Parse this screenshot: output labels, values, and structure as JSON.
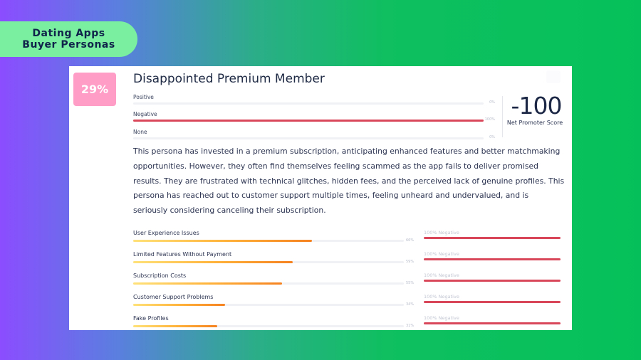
{
  "pill": {
    "line1": "Dating Apps",
    "line2": "Buyer Personas"
  },
  "persona": {
    "percent": "29%",
    "title": "Disappointed Premium Member",
    "sentiment": [
      {
        "label": "Positive",
        "value": "0%",
        "fraction": 0
      },
      {
        "label": "Negative",
        "value": "100%",
        "fraction": 1.0
      },
      {
        "label": "None",
        "value": "0%",
        "fraction": 0
      }
    ],
    "nps": {
      "score": "-100",
      "label": "Net Promoter Score"
    },
    "description": "This persona has invested in a premium subscription, anticipating enhanced features and better matchmaking opportunities. However, they often find themselves feeling scammed as the app fails to deliver promised results. They are frustrated with technical glitches, hidden fees, and the perceived lack of genuine profiles. This persona has reached out to customer support multiple times, feeling unheard and undervalued, and is seriously considering canceling their subscription.",
    "issues": [
      {
        "name": "User Experience Issues",
        "percent": "66%",
        "fraction": 0.66,
        "negative": "100% Negative"
      },
      {
        "name": "Limited Features Without Payment",
        "percent": "59%",
        "fraction": 0.59,
        "negative": "100% Negative"
      },
      {
        "name": "Subscription Costs",
        "percent": "55%",
        "fraction": 0.55,
        "negative": "100% Negative"
      },
      {
        "name": "Customer Support Problems",
        "percent": "34%",
        "fraction": 0.34,
        "negative": "100% Negative"
      },
      {
        "name": "Fake Profiles",
        "percent": "31%",
        "fraction": 0.31,
        "negative": "100% Negative"
      }
    ]
  },
  "colors": {
    "accent_pink": "#ff9dc7",
    "negative_red": "#d9475a",
    "pill_green": "#79ef9f"
  }
}
